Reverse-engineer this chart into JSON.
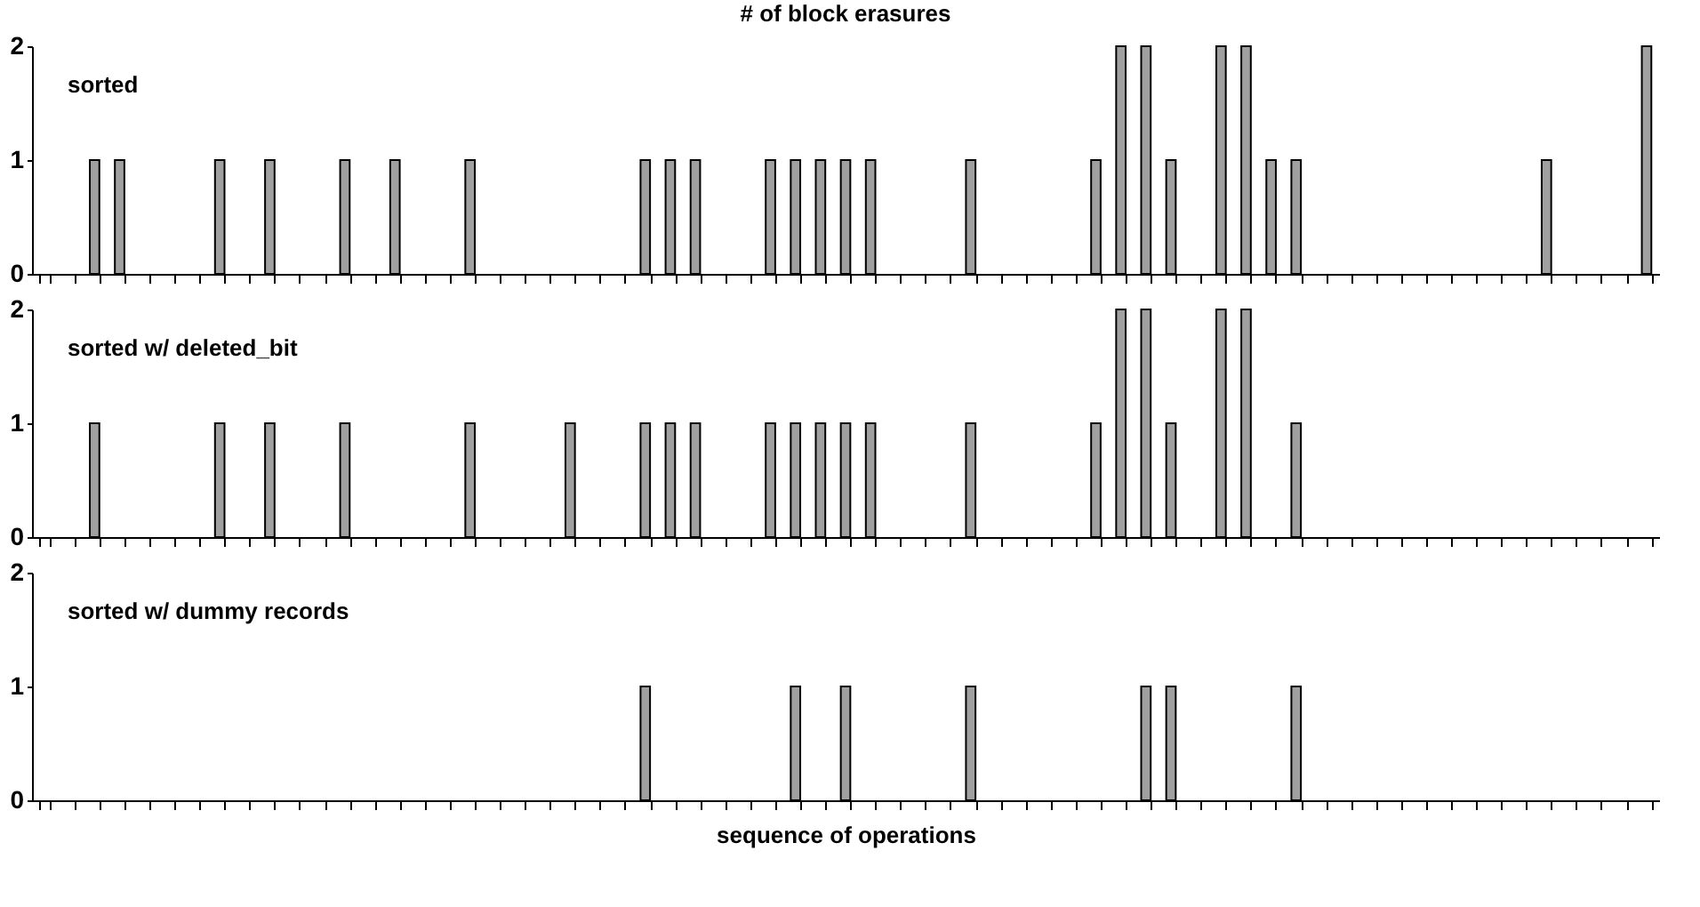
{
  "chart_data": [
    {
      "type": "bar",
      "title": "# of block erasures",
      "categories": [
        null,
        null,
        null,
        null,
        null,
        null,
        null,
        null,
        null,
        null,
        null,
        null,
        null,
        null,
        null,
        null,
        null,
        null,
        null,
        null,
        null,
        null,
        null,
        null,
        null,
        null,
        null,
        null,
        null,
        null,
        null,
        null,
        null,
        null,
        null,
        null,
        null,
        null,
        null,
        null,
        null,
        null,
        null,
        null,
        null,
        null,
        null,
        null,
        null,
        null,
        null,
        null,
        null,
        null,
        null,
        null,
        null,
        null,
        null,
        null,
        null,
        null,
        null,
        null,
        null
      ],
      "series": [
        {
          "name": "sorted",
          "color": "#a0a0a0",
          "values": [
            0,
            0,
            1,
            1,
            0,
            0,
            0,
            1,
            0,
            1,
            0,
            0,
            1,
            0,
            1,
            0,
            0,
            1,
            0,
            0,
            0,
            0,
            0,
            0,
            1,
            1,
            1,
            0,
            0,
            1,
            1,
            1,
            1,
            1,
            0,
            0,
            0,
            1,
            0,
            0,
            0,
            0,
            1,
            2,
            2,
            1,
            0,
            2,
            2,
            1,
            1,
            0,
            0,
            0,
            0,
            0,
            0,
            0,
            0,
            0,
            1,
            0,
            0,
            0,
            2
          ]
        }
      ],
      "ylim": [
        0,
        2
      ],
      "yticks": [
        0,
        1,
        2
      ],
      "tick_labels": "y",
      "grid": false
    },
    {
      "type": "bar",
      "categories": [
        null,
        null,
        null,
        null,
        null,
        null,
        null,
        null,
        null,
        null,
        null,
        null,
        null,
        null,
        null,
        null,
        null,
        null,
        null,
        null,
        null,
        null,
        null,
        null,
        null,
        null,
        null,
        null,
        null,
        null,
        null,
        null,
        null,
        null,
        null,
        null,
        null,
        null,
        null,
        null,
        null,
        null,
        null,
        null,
        null,
        null,
        null,
        null,
        null,
        null,
        null,
        null,
        null,
        null,
        null,
        null,
        null,
        null,
        null,
        null,
        null,
        null,
        null,
        null,
        null
      ],
      "series": [
        {
          "name": "sorted w/ deleted_bit",
          "color": "#a0a0a0",
          "values": [
            0,
            0,
            1,
            0,
            0,
            0,
            0,
            1,
            0,
            1,
            0,
            0,
            1,
            0,
            0,
            0,
            0,
            1,
            0,
            0,
            0,
            1,
            0,
            0,
            1,
            1,
            1,
            0,
            0,
            1,
            1,
            1,
            1,
            1,
            0,
            0,
            0,
            1,
            0,
            0,
            0,
            0,
            1,
            2,
            2,
            1,
            0,
            2,
            2,
            0,
            1,
            0,
            0,
            0,
            0,
            0,
            0,
            0,
            0,
            0,
            0,
            0,
            0,
            0,
            0
          ]
        }
      ],
      "ylim": [
        0,
        2
      ],
      "yticks": [
        0,
        1,
        2
      ],
      "tick_labels": "y",
      "grid": false
    },
    {
      "type": "bar",
      "xlabel": "sequence of operations",
      "categories": [
        null,
        null,
        null,
        null,
        null,
        null,
        null,
        null,
        null,
        null,
        null,
        null,
        null,
        null,
        null,
        null,
        null,
        null,
        null,
        null,
        null,
        null,
        null,
        null,
        null,
        null,
        null,
        null,
        null,
        null,
        null,
        null,
        null,
        null,
        null,
        null,
        null,
        null,
        null,
        null,
        null,
        null,
        null,
        null,
        null,
        null,
        null,
        null,
        null,
        null,
        null,
        null,
        null,
        null,
        null,
        null,
        null,
        null,
        null,
        null,
        null,
        null,
        null,
        null,
        null
      ],
      "series": [
        {
          "name": "sorted w/ dummy records",
          "color": "#a0a0a0",
          "values": [
            0,
            0,
            0,
            0,
            0,
            0,
            0,
            0,
            0,
            0,
            0,
            0,
            0,
            0,
            0,
            0,
            0,
            0,
            0,
            0,
            0,
            0,
            0,
            0,
            1,
            0,
            0,
            0,
            0,
            0,
            1,
            0,
            1,
            0,
            0,
            0,
            0,
            1,
            0,
            0,
            0,
            0,
            0,
            0,
            1,
            1,
            0,
            0,
            0,
            0,
            1,
            0,
            0,
            0,
            0,
            0,
            0,
            0,
            0,
            0,
            0,
            0,
            0,
            0,
            0
          ]
        }
      ],
      "ylim": [
        0,
        2
      ],
      "yticks": [
        0,
        1,
        2
      ],
      "tick_labels": "y",
      "grid": false
    }
  ]
}
